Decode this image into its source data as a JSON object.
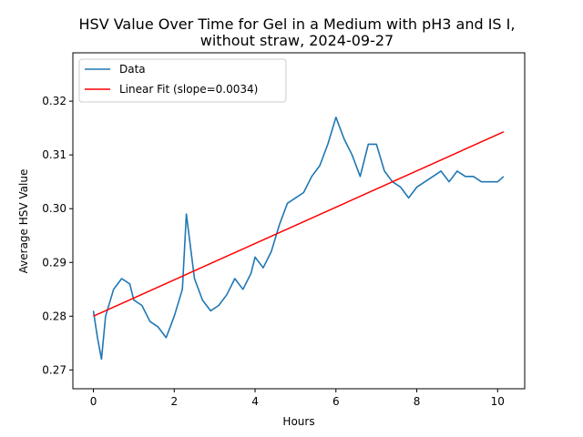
{
  "chart_data": {
    "type": "line",
    "title": "HSV Value Over Time for Gel in a Medium with pH3 and IS I,",
    "title_line2": "without straw, 2024-09-27",
    "xlabel": "Hours",
    "ylabel": "Average HSV Value",
    "xlim": [
      -0.508,
      10.67
    ],
    "ylim": [
      0.2665,
      0.329
    ],
    "xticks": [
      0,
      2,
      4,
      6,
      8,
      10
    ],
    "yticks": [
      0.27,
      0.28,
      0.29,
      0.3,
      0.31,
      0.32
    ],
    "xtick_labels": [
      "0",
      "2",
      "4",
      "6",
      "8",
      "10"
    ],
    "ytick_labels": [
      "0.27",
      "0.28",
      "0.29",
      "0.30",
      "0.31",
      "0.32"
    ],
    "legend_position": "upper-left",
    "series": [
      {
        "name": "Data",
        "color": "#1f77b4",
        "x": [
          0.0,
          0.1,
          0.2,
          0.3,
          0.5,
          0.7,
          0.9,
          1.0,
          1.2,
          1.4,
          1.6,
          1.8,
          2.0,
          2.2,
          2.3,
          2.4,
          2.5,
          2.7,
          2.9,
          3.1,
          3.3,
          3.5,
          3.7,
          3.9,
          4.0,
          4.2,
          4.4,
          4.6,
          4.8,
          5.0,
          5.2,
          5.4,
          5.6,
          5.8,
          6.0,
          6.2,
          6.4,
          6.6,
          6.8,
          7.0,
          7.2,
          7.4,
          7.6,
          7.8,
          8.0,
          8.2,
          8.4,
          8.6,
          8.8,
          9.0,
          9.2,
          9.4,
          9.6,
          9.8,
          10.0,
          10.15
        ],
        "y": [
          0.281,
          0.276,
          0.272,
          0.28,
          0.285,
          0.287,
          0.286,
          0.283,
          0.282,
          0.279,
          0.278,
          0.276,
          0.28,
          0.285,
          0.299,
          0.293,
          0.287,
          0.283,
          0.281,
          0.282,
          0.284,
          0.287,
          0.285,
          0.288,
          0.291,
          0.289,
          0.292,
          0.297,
          0.301,
          0.302,
          0.303,
          0.306,
          0.308,
          0.312,
          0.317,
          0.313,
          0.31,
          0.306,
          0.312,
          0.312,
          0.307,
          0.305,
          0.304,
          0.302,
          0.304,
          0.305,
          0.306,
          0.307,
          0.305,
          0.307,
          0.306,
          0.306,
          0.305,
          0.305,
          0.305,
          0.306
        ]
      },
      {
        "name": "Linear Fit (slope=0.0034)",
        "color": "#ff0000",
        "x": [
          0.0,
          10.15
        ],
        "y": [
          0.28,
          0.3143
        ]
      }
    ]
  }
}
